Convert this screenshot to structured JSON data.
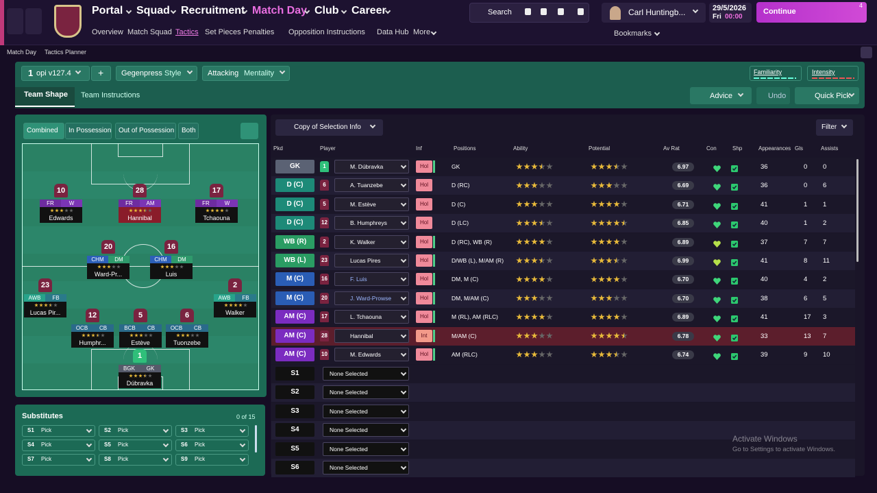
{
  "nav": {
    "main": [
      "Portal",
      "Squad",
      "Recruitment",
      "Match Day",
      "Club",
      "Career"
    ],
    "sub": [
      "Overview",
      "Match Squad",
      "Tactics",
      "Set Pieces",
      "Penalties",
      "Opposition Instructions",
      "Data Hub",
      "More"
    ],
    "search": "Search",
    "manager": "Carl Huntingb...",
    "date": "29/5/2026",
    "day": "Fri",
    "time": "00:00",
    "continue": "Continue",
    "badge": "4",
    "bookmarks": "Bookmarks"
  },
  "breadcrumb": [
    "Match Day",
    "Tactics Planner"
  ],
  "tactic": {
    "slot": "1",
    "name": "opi v127.4",
    "add": "+",
    "style": "Gegenpress",
    "style_label": "Style",
    "mentality": "Attacking",
    "mentality_label": "Mentality",
    "familiarity": "Familiarity",
    "intensity": "Intensity"
  },
  "tabs": [
    "Team Shape",
    "Team Instructions"
  ],
  "actions": {
    "advice": "Advice",
    "undo": "Undo",
    "quick_pick": "Quick Pick"
  },
  "pitch": {
    "modes": [
      "Combined",
      "In Possession",
      "Out of Possession",
      "Both"
    ],
    "players": [
      {
        "number": "10",
        "roles": [
          "FR",
          "W"
        ],
        "stars": 3,
        "name": "Edwards"
      },
      {
        "number": "28",
        "roles": [
          "FR",
          "AM"
        ],
        "stars": 3.5,
        "name": "Hannibal"
      },
      {
        "number": "17",
        "roles": [
          "FR",
          "W"
        ],
        "stars": 4,
        "name": "Tchaouna"
      },
      {
        "number": "20",
        "roles": [
          "CHM",
          "DM"
        ],
        "stars": 3,
        "name": "Ward-Pr..."
      },
      {
        "number": "16",
        "roles": [
          "CHM",
          "DM"
        ],
        "stars": 3,
        "name": "Luis"
      },
      {
        "number": "23",
        "roles": [
          "AWB",
          "FB"
        ],
        "stars": 3.5,
        "name": "Lucas Pir..."
      },
      {
        "number": "2",
        "roles": [
          "AWB",
          "FB"
        ],
        "stars": 4,
        "name": "Walker"
      },
      {
        "number": "12",
        "roles": [
          "OCB",
          "CB"
        ],
        "stars": 3.5,
        "name": "Humphr..."
      },
      {
        "number": "5",
        "roles": [
          "BCB",
          "CB"
        ],
        "stars": 3,
        "name": "Estève"
      },
      {
        "number": "6",
        "roles": [
          "OCB",
          "CB"
        ],
        "stars": 3,
        "name": "Tuonzebe"
      },
      {
        "number": "1",
        "roles": [
          "BGK",
          "GK"
        ],
        "stars": 3.5,
        "name": "Dúbravka"
      }
    ]
  },
  "substitutes": {
    "title": "Substitutes",
    "count": "0 of 15",
    "slots": [
      [
        "S1",
        "Pick"
      ],
      [
        "S2",
        "Pick"
      ],
      [
        "S3",
        "Pick"
      ],
      [
        "S4",
        "Pick"
      ],
      [
        "S5",
        "Pick"
      ],
      [
        "S6",
        "Pick"
      ],
      [
        "S7",
        "Pick"
      ],
      [
        "S8",
        "Pick"
      ],
      [
        "S9",
        "Pick"
      ]
    ]
  },
  "table": {
    "copy": "Copy of Selection Info",
    "filter": "Filter",
    "headers": [
      "Pkd",
      "Player",
      "Inf",
      "Positions",
      "Ability",
      "Potential",
      "Av Rat",
      "Con",
      "Shp",
      "Appearances",
      "Gls",
      "Assists"
    ],
    "rows": [
      {
        "pos": "GK",
        "number": "1",
        "player": "M. Dúbravka",
        "inf": "Hol",
        "positions": "GK",
        "ability": 3.5,
        "potential": 3.5,
        "av_rat": "6.97",
        "apps": "36",
        "gls": "0",
        "assists": "0"
      },
      {
        "pos": "D (C)",
        "number": "6",
        "player": "A. Tuanzebe",
        "inf": "Hol",
        "positions": "D (RC)",
        "ability": 3,
        "potential": 3,
        "av_rat": "6.69",
        "apps": "36",
        "gls": "0",
        "assists": "6"
      },
      {
        "pos": "D (C)",
        "number": "5",
        "player": "M. Estève",
        "inf": "Hol",
        "positions": "D (C)",
        "ability": 3,
        "potential": 4,
        "av_rat": "6.71",
        "apps": "41",
        "gls": "1",
        "assists": "1"
      },
      {
        "pos": "D (C)",
        "number": "12",
        "player": "B. Humphreys",
        "inf": "Hol",
        "positions": "D (LC)",
        "ability": 3.5,
        "potential": 4.5,
        "av_rat": "6.85",
        "apps": "40",
        "gls": "1",
        "assists": "2"
      },
      {
        "pos": "WB (R)",
        "number": "2",
        "player": "K. Walker",
        "inf": "Hol",
        "positions": "D (RC), WB (R)",
        "ability": 4,
        "potential": 4,
        "av_rat": "6.89",
        "apps": "37",
        "gls": "7",
        "assists": "7"
      },
      {
        "pos": "WB (L)",
        "number": "23",
        "player": "Lucas Pires",
        "inf": "Hol",
        "positions": "D/WB (L), M/AM (R)",
        "ability": 3.5,
        "potential": 3.5,
        "av_rat": "6.99",
        "apps": "41",
        "gls": "8",
        "assists": "11"
      },
      {
        "pos": "M (C)",
        "number": "16",
        "player": "F. Luis",
        "inf": "Hol",
        "positions": "DM, M (C)",
        "ability": 4,
        "potential": 4,
        "av_rat": "6.70",
        "apps": "40",
        "gls": "4",
        "assists": "2"
      },
      {
        "pos": "M (C)",
        "number": "20",
        "player": "J. Ward-Prowse",
        "inf": "Hol",
        "positions": "DM, M/AM (C)",
        "ability": 3,
        "potential": 3,
        "av_rat": "6.70",
        "apps": "38",
        "gls": "6",
        "assists": "5"
      },
      {
        "pos": "AM (C)",
        "number": "17",
        "player": "L. Tchaouna",
        "inf": "Hol",
        "positions": "M (RL), AM (RLC)",
        "ability": 4,
        "potential": 4,
        "av_rat": "6.89",
        "apps": "41",
        "gls": "17",
        "assists": "3"
      },
      {
        "pos": "AM (C)",
        "number": "28",
        "player": "Hannibal",
        "inf": "Int",
        "positions": "M/AM (C)",
        "ability": 3,
        "potential": 4.5,
        "av_rat": "6.78",
        "apps": "33",
        "gls": "13",
        "assists": "7"
      },
      {
        "pos": "AM (C)",
        "number": "10",
        "player": "M. Edwards",
        "inf": "Hol",
        "positions": "AM (RLC)",
        "ability": 3,
        "potential": 3.5,
        "av_rat": "6.74",
        "apps": "39",
        "gls": "9",
        "assists": "10"
      }
    ],
    "subs": [
      [
        "S1",
        "None Selected"
      ],
      [
        "S2",
        "None Selected"
      ],
      [
        "S3",
        "None Selected"
      ],
      [
        "S4",
        "None Selected"
      ],
      [
        "S5",
        "None Selected"
      ],
      [
        "S6",
        "None Selected"
      ]
    ]
  },
  "watermark": {
    "title": "Activate Windows",
    "text": "Go to Settings to activate Windows."
  }
}
